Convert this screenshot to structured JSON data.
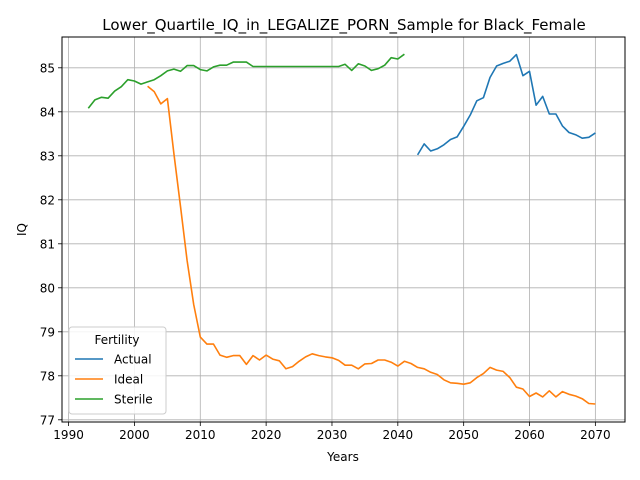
{
  "chart_data": {
    "type": "line",
    "title": "Lower_Quartile_IQ_in_LEGALIZE_PORN_Sample for Black_Female",
    "xlabel": "Years",
    "ylabel": "IQ",
    "xlim": [
      1989,
      2074.5
    ],
    "ylim": [
      76.95,
      85.7
    ],
    "xticks": [
      1990,
      2000,
      2010,
      2020,
      2030,
      2040,
      2050,
      2060,
      2070
    ],
    "yticks": [
      77,
      78,
      79,
      80,
      81,
      82,
      83,
      84,
      85
    ],
    "grid": true,
    "legend": {
      "title": "Fertility",
      "position": "lower-left"
    },
    "series": [
      {
        "name": "Actual",
        "color": "#1f77b4",
        "x": [
          2043,
          2044,
          2045,
          2046,
          2047,
          2048,
          2049,
          2050,
          2051,
          2052,
          2053,
          2054,
          2055,
          2056,
          2057,
          2058,
          2059,
          2060,
          2061,
          2062,
          2063,
          2064,
          2065,
          2066,
          2067,
          2068,
          2069,
          2070
        ],
        "values": [
          83.02,
          83.27,
          83.11,
          83.16,
          83.25,
          83.37,
          83.43,
          83.67,
          83.93,
          84.25,
          84.32,
          84.78,
          85.04,
          85.1,
          85.15,
          85.3,
          84.82,
          84.92,
          84.15,
          84.35,
          83.95,
          83.95,
          83.68,
          83.53,
          83.48,
          83.4,
          83.42,
          83.52
        ]
      },
      {
        "name": "Ideal",
        "color": "#ff7f0e",
        "x": [
          2002,
          2003,
          2004,
          2005,
          2006,
          2007,
          2008,
          2009,
          2010,
          2011,
          2012,
          2013,
          2014,
          2015,
          2016,
          2017,
          2018,
          2019,
          2020,
          2021,
          2022,
          2023,
          2024,
          2025,
          2026,
          2027,
          2028,
          2029,
          2030,
          2031,
          2032,
          2033,
          2034,
          2035,
          2036,
          2037,
          2038,
          2039,
          2040,
          2041,
          2042,
          2043,
          2044,
          2045,
          2046,
          2047,
          2048,
          2049,
          2050,
          2051,
          2052,
          2053,
          2054,
          2055,
          2056,
          2057,
          2058,
          2059,
          2060,
          2061,
          2062,
          2063,
          2064,
          2065,
          2066,
          2067,
          2068,
          2069,
          2070
        ],
        "values": [
          84.58,
          84.46,
          84.18,
          84.3,
          83.05,
          81.85,
          80.62,
          79.62,
          78.88,
          78.72,
          78.72,
          78.47,
          78.42,
          78.46,
          78.46,
          78.26,
          78.46,
          78.36,
          78.47,
          78.38,
          78.34,
          78.16,
          78.21,
          78.33,
          78.43,
          78.5,
          78.46,
          78.43,
          78.41,
          78.35,
          78.24,
          78.24,
          78.16,
          78.27,
          78.28,
          78.36,
          78.36,
          78.31,
          78.22,
          78.33,
          78.28,
          78.19,
          78.16,
          78.08,
          78.03,
          77.91,
          77.84,
          77.83,
          77.81,
          77.84,
          77.96,
          78.05,
          78.19,
          78.13,
          78.1,
          77.96,
          77.74,
          77.7,
          77.53,
          77.61,
          77.52,
          77.66,
          77.52,
          77.64,
          77.58,
          77.54,
          77.48,
          77.37,
          77.36
        ]
      },
      {
        "name": "Sterile",
        "color": "#2ca02c",
        "x": [
          1993,
          1994,
          1995,
          1996,
          1997,
          1998,
          1999,
          2000,
          2001,
          2002,
          2003,
          2004,
          2005,
          2006,
          2007,
          2008,
          2009,
          2010,
          2011,
          2012,
          2013,
          2014,
          2015,
          2016,
          2017,
          2018,
          2019,
          2020,
          2021,
          2022,
          2023,
          2024,
          2025,
          2026,
          2027,
          2028,
          2029,
          2030,
          2031,
          2032,
          2033,
          2034,
          2035,
          2036,
          2037,
          2038,
          2039,
          2040,
          2041
        ],
        "values": [
          84.08,
          84.27,
          84.33,
          84.31,
          84.47,
          84.57,
          84.73,
          84.7,
          84.63,
          84.68,
          84.73,
          84.82,
          84.93,
          84.97,
          84.92,
          85.05,
          85.05,
          84.96,
          84.93,
          85.02,
          85.06,
          85.06,
          85.13,
          85.13,
          85.13,
          85.03,
          85.03,
          85.03,
          85.03,
          85.03,
          85.03,
          85.03,
          85.03,
          85.03,
          85.03,
          85.03,
          85.03,
          85.03,
          85.03,
          85.08,
          84.94,
          85.09,
          85.04,
          84.94,
          84.98,
          85.06,
          85.23,
          85.2,
          85.31
        ]
      }
    ]
  }
}
